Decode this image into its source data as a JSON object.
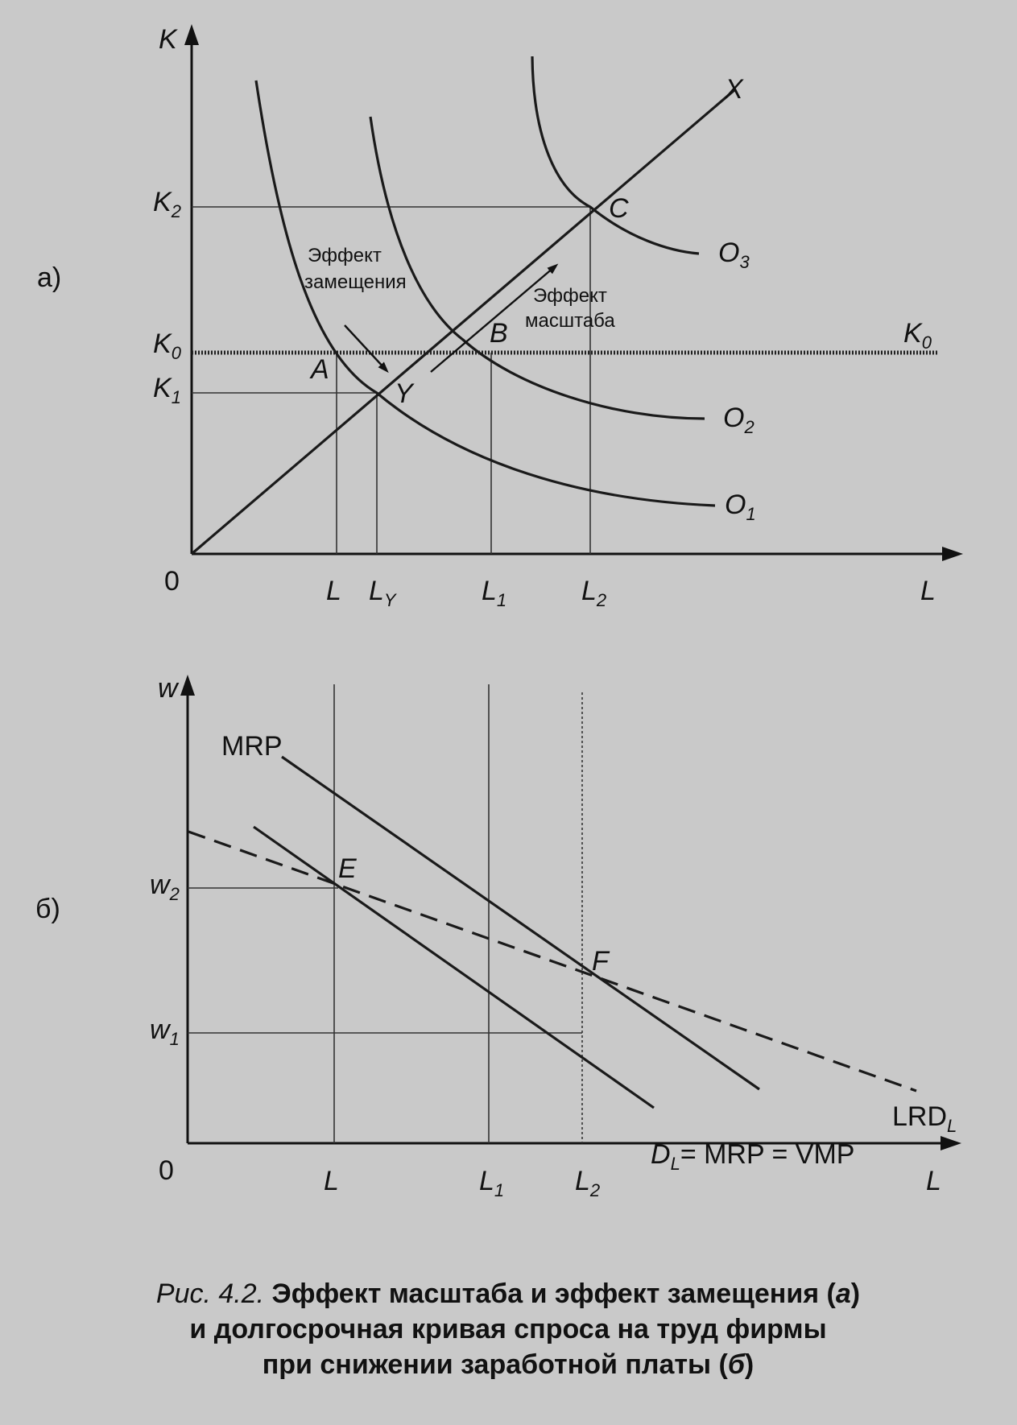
{
  "panel_a": {
    "label": "а)",
    "y_axis": "K",
    "x_axis": "L",
    "origin": "0",
    "y_ticks": [
      {
        "main": "K",
        "sub": "2"
      },
      {
        "main": "K",
        "sub": "0"
      },
      {
        "main": "K",
        "sub": "1"
      }
    ],
    "x_ticks": [
      {
        "main": "L",
        "sub": ""
      },
      {
        "main": "L",
        "sub": "Y"
      },
      {
        "main": "L",
        "sub": "1"
      },
      {
        "main": "L",
        "sub": "2"
      }
    ],
    "points": [
      "A",
      "Y",
      "B",
      "C"
    ],
    "curves": [
      {
        "main": "O",
        "sub": "1"
      },
      {
        "main": "O",
        "sub": "2"
      },
      {
        "main": "O",
        "sub": "3"
      }
    ],
    "ray_label": "X",
    "k0_label": {
      "main": "K",
      "sub": "0"
    },
    "substitution_line1": "Эффект",
    "substitution_line2": "замещения",
    "scale_line1": "Эффект",
    "scale_line2": "масштаба"
  },
  "panel_b": {
    "label": "б)",
    "y_axis": "w",
    "x_axis": "L",
    "origin": "0",
    "y_ticks": [
      {
        "main": "w",
        "sub": "2"
      },
      {
        "main": "w",
        "sub": "1"
      }
    ],
    "x_ticks": [
      {
        "main": "L",
        "sub": ""
      },
      {
        "main": "L",
        "sub": "1"
      },
      {
        "main": "L",
        "sub": "2"
      }
    ],
    "points": [
      "E",
      "F"
    ],
    "mrp_label": "MRP",
    "lrd_label": {
      "main": "LRD",
      "sub": "L"
    },
    "demand_label": {
      "main": "D",
      "sub": "L",
      "rest": "= MRP = VMP"
    }
  },
  "caption": {
    "prefix": "Рис. 4.2.",
    "line1_bold": "Эффект масштаба и эффект замещения (",
    "line1_italic": "а",
    "line1_end": ")",
    "line2": "и долгосрочная кривая спроса на труд фирмы",
    "line3_bold": "при снижении заработной платы (",
    "line3_italic": "б",
    "line3_end": ")"
  }
}
